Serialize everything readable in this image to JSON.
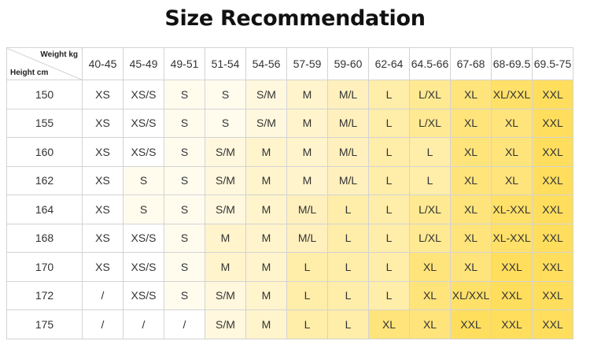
{
  "title": "Size Recommendation",
  "axis": {
    "weight_label": "Weight kg",
    "height_label": "Height cm"
  },
  "weights": [
    "40-45",
    "45-49",
    "49-51",
    "51-54",
    "54-56",
    "57-59",
    "59-60",
    "62-64",
    "64.5-66",
    "67-68",
    "68-69.5",
    "69.5-75"
  ],
  "rows": [
    {
      "height": "150",
      "sizes": [
        "XS",
        "XS/S",
        "S",
        "S",
        "S/M",
        "M",
        "M/L",
        "L",
        "L/XL",
        "XL",
        "XL/XXL",
        "XXL"
      ]
    },
    {
      "height": "155",
      "sizes": [
        "XS",
        "XS/S",
        "S",
        "S",
        "S/M",
        "M",
        "M/L",
        "L",
        "L/XL",
        "XL",
        "XL",
        "XXL"
      ]
    },
    {
      "height": "160",
      "sizes": [
        "XS",
        "XS/S",
        "S",
        "S/M",
        "M",
        "M",
        "M/L",
        "L",
        "L",
        "XL",
        "XL",
        "XXL"
      ]
    },
    {
      "height": "162",
      "sizes": [
        "XS",
        "S",
        "S",
        "S/M",
        "M",
        "M",
        "M/L",
        "L",
        "L",
        "XL",
        "XL",
        "XXL"
      ]
    },
    {
      "height": "164",
      "sizes": [
        "XS",
        "S",
        "S",
        "S/M",
        "M",
        "M/L",
        "L",
        "L",
        "L/XL",
        "XL",
        "XL-XXL",
        "XXL"
      ]
    },
    {
      "height": "168",
      "sizes": [
        "XS",
        "XS/S",
        "S",
        "M",
        "M",
        "M/L",
        "L",
        "L",
        "L/XL",
        "XL",
        "XL-XXL",
        "XXL"
      ]
    },
    {
      "height": "170",
      "sizes": [
        "XS",
        "XS/S",
        "S",
        "M",
        "M",
        "L",
        "L",
        "L",
        "XL",
        "XL",
        "XXL",
        "XXL"
      ]
    },
    {
      "height": "172",
      "sizes": [
        "/",
        "XS/S",
        "S",
        "S/M",
        "M",
        "L",
        "L",
        "L",
        "XL",
        "XL/XXL",
        "XXL",
        "XXL"
      ]
    },
    {
      "height": "175",
      "sizes": [
        "/",
        "/",
        "/",
        "S/M",
        "M",
        "L",
        "L",
        "XL",
        "XL",
        "XXL",
        "XXL",
        "XXL"
      ]
    }
  ],
  "colors": {
    "text": "#333333",
    "border": "#d3d3d3",
    "size_shades": {
      "XS": "#ffffff",
      "XS/S": "#ffffff",
      "S": "#fffcee",
      "S/M": "#fff8de",
      "M": "#fff4cc",
      "M/L": "#fff0bd",
      "L": "#ffedaa",
      "L/XL": "#ffe992",
      "XL": "#ffe47c",
      "XL/XXL": "#ffe069",
      "XL-XXL": "#ffe069",
      "XXL": "#ffde5e",
      "/": "#ffffff"
    }
  }
}
